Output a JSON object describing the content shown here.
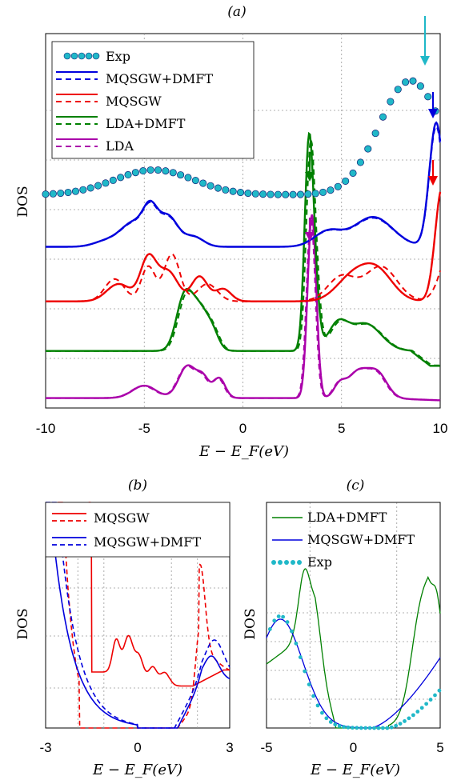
{
  "chart_data": [
    {
      "panel_label": "(a)",
      "type": "line",
      "xlabel": "E − E_F(eV)",
      "ylabel": "DOS",
      "xlim": [
        -10,
        10
      ],
      "x_ticks": [
        "-10",
        "-5",
        "0",
        "5",
        "10"
      ],
      "grid": true,
      "legend_position": "top-left",
      "colors": {
        "Exp": "#20b8c8",
        "MQSGW+DMFT": "#0000dd",
        "MQSGW": "#ee0000",
        "LDA+DMFT": "#008000",
        "LDA": "#aa00aa"
      },
      "legend": [
        {
          "name": "Exp",
          "style": "dots"
        },
        {
          "name": "MQSGW+DMFT",
          "style": "line+dashed"
        },
        {
          "name": "MQSGW",
          "style": "line+dashed"
        },
        {
          "name": "LDA+DMFT",
          "style": "line+dashed"
        },
        {
          "name": "LDA",
          "style": "line+dashed"
        }
      ],
      "arrows": [
        {
          "series": "Exp",
          "x": 9.4
        },
        {
          "series": "MQSGW+DMFT",
          "x": 10.0
        },
        {
          "series": "MQSGW",
          "x": 10.0
        },
        {
          "series": "LDA+DMFT",
          "x": 3.5
        },
        {
          "series": "LDA",
          "x": 3.5
        }
      ]
    },
    {
      "panel_label": "(b)",
      "type": "line",
      "xlabel": "E − E_F(eV)",
      "ylabel": "DOS",
      "xlim": [
        -3,
        3
      ],
      "x_ticks": [
        "-3",
        "0",
        "3"
      ],
      "grid": true,
      "legend_position": "top",
      "legend": [
        {
          "name": "MQSGW",
          "style": "line+dashed"
        },
        {
          "name": "MQSGW+DMFT",
          "style": "line+dashed"
        }
      ]
    },
    {
      "panel_label": "(c)",
      "type": "line",
      "xlabel": "E − E_F(eV)",
      "ylabel": "DOS",
      "xlim": [
        -5,
        5
      ],
      "x_ticks": [
        "-5",
        "0",
        "5"
      ],
      "grid": true,
      "legend_position": "top",
      "legend": [
        {
          "name": "LDA+DMFT",
          "style": "line"
        },
        {
          "name": "MQSGW+DMFT",
          "style": "line"
        },
        {
          "name": "Exp",
          "style": "dots"
        }
      ]
    }
  ]
}
